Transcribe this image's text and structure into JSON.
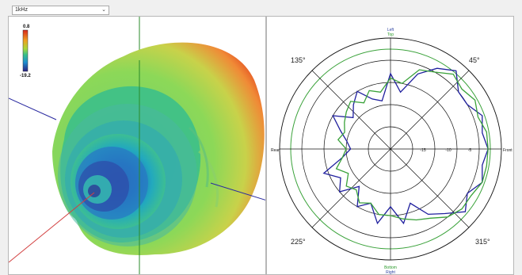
{
  "frequency_select": {
    "value": "1kHz"
  },
  "balloon_3d": {
    "colorbar": {
      "max_label": "0.8",
      "min_label": "-19.2"
    }
  },
  "polar_plot": {
    "top_labels": [
      "Left",
      "Top"
    ],
    "bottom_labels": [
      "Bottom",
      "Right"
    ],
    "left_label": "Rear",
    "right_label": "Front",
    "angle_labels": [
      "45°",
      "135°",
      "225°",
      "315°"
    ],
    "ring_labels": [
      "-15",
      "-10",
      "-5"
    ]
  },
  "chart_data": {
    "type": "polar",
    "angle_unit": "degrees",
    "radial_unit": "dB",
    "rlim": [
      -25,
      0
    ],
    "series": [
      {
        "color": "#1f1f9e",
        "angles": [
          0,
          10,
          20,
          30,
          40,
          50,
          60,
          70,
          80,
          90,
          100,
          110,
          120,
          130,
          140,
          150,
          160,
          170,
          180,
          190,
          200,
          210,
          220,
          230,
          240,
          250,
          260,
          270,
          280,
          290,
          300,
          310,
          320,
          330,
          340,
          350
        ],
        "values": [
          -3,
          -4,
          -3,
          -5,
          -5,
          -2,
          -4,
          -7,
          -12,
          -8,
          -14,
          -13,
          -10,
          -12,
          -14,
          -10,
          -13,
          -15,
          -16,
          -14,
          -9,
          -12,
          -10,
          -14,
          -10,
          -12,
          -8,
          -12,
          -8,
          -12,
          -8,
          -6,
          -3,
          -5,
          -3,
          -4
        ]
      },
      {
        "color": "#3aa23a",
        "angles": [
          0,
          10,
          20,
          30,
          40,
          50,
          60,
          70,
          80,
          90,
          100,
          110,
          120,
          130,
          140,
          150,
          160,
          170,
          180,
          190,
          200,
          210,
          220,
          230,
          240,
          250,
          260,
          270,
          280,
          290,
          300,
          310,
          320,
          330,
          340,
          350
        ],
        "values": [
          -3,
          -3,
          -4,
          -3,
          -4,
          -3,
          -5,
          -6,
          -10,
          -9,
          -12,
          -11,
          -13,
          -11,
          -12,
          -13,
          -14,
          -13,
          -15,
          -14,
          -12,
          -14,
          -12,
          -13,
          -11,
          -12,
          -10,
          -10,
          -9,
          -8,
          -7,
          -5,
          -4,
          -4,
          -3,
          -3
        ]
      }
    ]
  }
}
